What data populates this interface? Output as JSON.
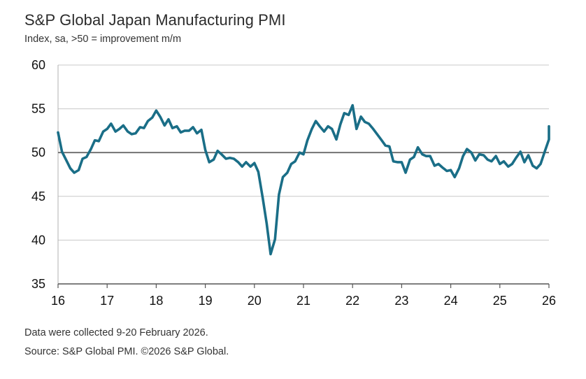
{
  "chart_data": {
    "type": "line",
    "title": "S&P Global Japan Manufacturing PMI",
    "subtitle": "Index, sa, >50 = improvement m/m",
    "xlabel": "",
    "ylabel": "",
    "ylim": [
      35,
      60
    ],
    "yticks": [
      "60",
      "55",
      "50",
      "45",
      "40",
      "35"
    ],
    "ytick_values": [
      60,
      55,
      50,
      45,
      40,
      35
    ],
    "xlim": [
      2016.0,
      2026.0
    ],
    "xticks": [
      "16",
      "17",
      "18",
      "19",
      "20",
      "21",
      "22",
      "23",
      "24",
      "25",
      "26"
    ],
    "xtick_values": [
      2016,
      2017,
      2018,
      2019,
      2020,
      2021,
      2022,
      2023,
      2024,
      2025,
      2026
    ],
    "reference_line": 50,
    "grid": true,
    "series": [
      {
        "name": "PMI",
        "color": "#1a6e87",
        "x": [
          2016.0,
          2016.08,
          2016.17,
          2016.25,
          2016.33,
          2016.42,
          2016.5,
          2016.58,
          2016.67,
          2016.75,
          2016.83,
          2016.92,
          2017.0,
          2017.08,
          2017.17,
          2017.25,
          2017.33,
          2017.42,
          2017.5,
          2017.58,
          2017.67,
          2017.75,
          2017.83,
          2017.92,
          2018.0,
          2018.08,
          2018.17,
          2018.25,
          2018.33,
          2018.42,
          2018.5,
          2018.58,
          2018.67,
          2018.75,
          2018.83,
          2018.92,
          2019.0,
          2019.08,
          2019.17,
          2019.25,
          2019.33,
          2019.42,
          2019.5,
          2019.58,
          2019.67,
          2019.75,
          2019.83,
          2019.92,
          2020.0,
          2020.08,
          2020.17,
          2020.25,
          2020.33,
          2020.42,
          2020.5,
          2020.58,
          2020.67,
          2020.75,
          2020.83,
          2020.92,
          2021.0,
          2021.08,
          2021.17,
          2021.25,
          2021.33,
          2021.42,
          2021.5,
          2021.58,
          2021.67,
          2021.75,
          2021.83,
          2021.92,
          2022.0,
          2022.08,
          2022.17,
          2022.25,
          2022.33,
          2022.42,
          2022.5,
          2022.58,
          2022.67,
          2022.75,
          2022.83,
          2022.92,
          2023.0,
          2023.08,
          2023.17,
          2023.25,
          2023.33,
          2023.42,
          2023.5,
          2023.58,
          2023.67,
          2023.75,
          2023.83,
          2023.92,
          2024.0,
          2024.08,
          2024.17,
          2024.25,
          2024.33,
          2024.42,
          2024.5,
          2024.58,
          2024.67,
          2024.75,
          2024.83,
          2024.92,
          2025.0,
          2025.08,
          2025.17,
          2025.25,
          2025.33,
          2025.42,
          2025.5,
          2025.58,
          2025.67,
          2025.75,
          2025.83,
          2025.92,
          2026.0,
          2026.08
        ],
        "values": [
          52.3,
          50.1,
          49.1,
          48.2,
          47.7,
          48.0,
          49.3,
          49.5,
          50.4,
          51.4,
          51.3,
          52.4,
          52.7,
          53.3,
          52.4,
          52.7,
          53.1,
          52.4,
          52.1,
          52.2,
          52.9,
          52.8,
          53.6,
          54.0,
          54.8,
          54.1,
          53.1,
          53.8,
          52.8,
          53.0,
          52.3,
          52.5,
          52.5,
          52.9,
          52.2,
          52.6,
          50.3,
          48.9,
          49.2,
          50.2,
          49.8,
          49.3,
          49.4,
          49.3,
          48.9,
          48.4,
          48.9,
          48.4,
          48.8,
          47.8,
          44.8,
          41.9,
          38.4,
          40.1,
          45.2,
          47.2,
          47.7,
          48.7,
          49.0,
          50.0,
          49.8,
          51.4,
          52.7,
          53.6,
          53.0,
          52.4,
          53.0,
          52.7,
          51.5,
          53.2,
          54.5,
          54.3,
          55.4,
          52.7,
          54.1,
          53.5,
          53.3,
          52.7,
          52.1,
          51.5,
          50.8,
          50.7,
          49.0,
          48.9,
          48.9,
          47.7,
          49.2,
          49.5,
          50.6,
          49.8,
          49.6,
          49.6,
          48.5,
          48.7,
          48.3,
          47.9,
          48.0,
          47.2,
          48.2,
          49.6,
          50.4,
          50.0,
          49.1,
          49.8,
          49.7,
          49.2,
          49.0,
          49.6,
          48.7,
          49.0,
          48.4,
          48.7,
          49.4,
          50.1,
          48.9,
          49.7,
          48.5,
          48.2,
          48.7,
          50.2,
          51.5,
          53.0
        ]
      }
    ]
  },
  "footer": {
    "note": "Data were collected 9-20 February 2026.",
    "source": "Source: S&P Global PMI. ©2026 S&P Global."
  }
}
